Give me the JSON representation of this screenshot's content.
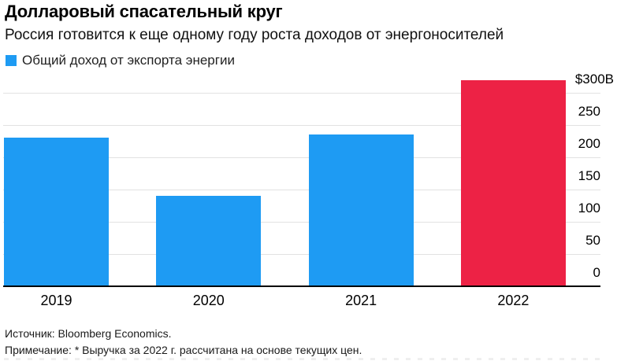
{
  "header": {
    "title": "Долларовый спасательный круг",
    "subtitle": "Россия готовится к еще одному году роста доходов от энергоносителей"
  },
  "legend": {
    "label": "Общий доход от экспорта энергии"
  },
  "colors": {
    "bar_blue": "#1e9bf3",
    "bar_red": "#ed2245",
    "gridline": "#e2e2e2",
    "axis": "#000000"
  },
  "chart_data": {
    "type": "bar",
    "title": "Долларовый спасательный круг",
    "subtitle": "Россия готовится к еще одному году роста доходов от энергоносителей",
    "series_name": "Общий доход от экспорта энергии",
    "categories": [
      "2019",
      "2020",
      "2021",
      "2022"
    ],
    "values": [
      230,
      140,
      235,
      320
    ],
    "unit": "billion USD",
    "bar_colors": [
      "#1e9bf3",
      "#1e9bf3",
      "#1e9bf3",
      "#ed2245"
    ],
    "highlighted_category": "2022",
    "y_ticks": [
      0,
      50,
      100,
      150,
      200,
      250,
      300
    ],
    "y_tick_labels": [
      "0",
      "50",
      "100",
      "150",
      "200",
      "250",
      "$300B"
    ],
    "ylim": [
      0,
      330
    ],
    "grid": "horizontal",
    "tick_label_side": "right",
    "legend_position": "top-left"
  },
  "footer": {
    "source": "Источник: Bloomberg Economics.",
    "note": "Примечание: * Выручка за 2022 г. рассчитана на основе текущих цен."
  }
}
